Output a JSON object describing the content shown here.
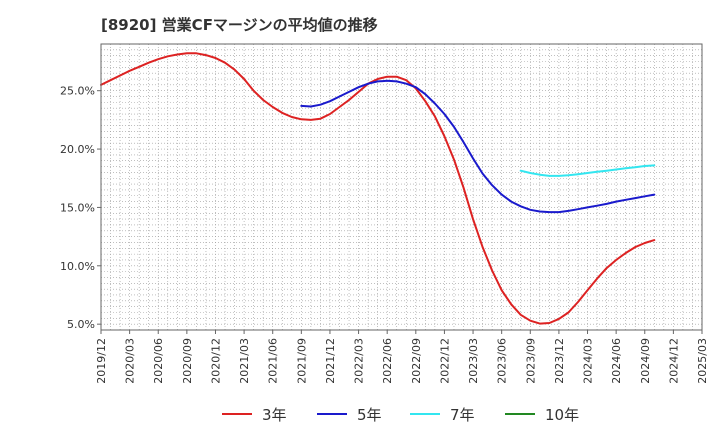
{
  "chart_data": {
    "type": "line",
    "title": "[8920]  営業CFマージンの平均値の推移",
    "x": [
      "2019/12",
      "2020/03",
      "2020/06",
      "2020/09",
      "2020/12",
      "2021/03",
      "2021/06",
      "2021/09",
      "2021/12",
      "2022/03",
      "2022/06",
      "2022/09",
      "2022/12",
      "2023/03",
      "2023/06",
      "2023/09",
      "2023/12",
      "2024/03",
      "2024/06",
      "2024/09",
      "2024/12",
      "2025/03"
    ],
    "xlabel": "",
    "ylabel": "",
    "yticks": [
      5.0,
      10.0,
      15.0,
      20.0,
      25.0
    ],
    "ytick_labels": [
      "5.0%",
      "10.0%",
      "15.0%",
      "20.0%",
      "25.0%"
    ],
    "ylim": [
      4.5,
      29.0
    ],
    "grid": true,
    "legend_position": "bottom",
    "series": [
      {
        "name": "3年",
        "color": "#dd2222",
        "points": [
          [
            "2019/12",
            25.5
          ],
          [
            "2020/01",
            25.9
          ],
          [
            "2020/02",
            26.3
          ],
          [
            "2020/03",
            26.7
          ],
          [
            "2020/04",
            27.05
          ],
          [
            "2020/05",
            27.4
          ],
          [
            "2020/06",
            27.7
          ],
          [
            "2020/07",
            27.95
          ],
          [
            "2020/08",
            28.1
          ],
          [
            "2020/09",
            28.2
          ],
          [
            "2020/10",
            28.2
          ],
          [
            "2020/11",
            28.05
          ],
          [
            "2020/12",
            27.8
          ],
          [
            "2021/01",
            27.4
          ],
          [
            "2021/02",
            26.8
          ],
          [
            "2021/03",
            26.0
          ],
          [
            "2021/04",
            25.0
          ],
          [
            "2021/05",
            24.2
          ],
          [
            "2021/06",
            23.6
          ],
          [
            "2021/07",
            23.1
          ],
          [
            "2021/08",
            22.75
          ],
          [
            "2021/09",
            22.55
          ],
          [
            "2021/10",
            22.5
          ],
          [
            "2021/11",
            22.6
          ],
          [
            "2021/12",
            23.0
          ],
          [
            "2022/01",
            23.6
          ],
          [
            "2022/02",
            24.2
          ],
          [
            "2022/03",
            24.9
          ],
          [
            "2022/04",
            25.6
          ],
          [
            "2022/05",
            26.0
          ],
          [
            "2022/06",
            26.2
          ],
          [
            "2022/07",
            26.2
          ],
          [
            "2022/08",
            25.9
          ],
          [
            "2022/09",
            25.2
          ],
          [
            "2022/10",
            24.1
          ],
          [
            "2022/11",
            22.8
          ],
          [
            "2022/12",
            21.1
          ],
          [
            "2023/01",
            19.1
          ],
          [
            "2023/02",
            16.7
          ],
          [
            "2023/03",
            14.0
          ],
          [
            "2023/04",
            11.6
          ],
          [
            "2023/05",
            9.6
          ],
          [
            "2023/06",
            7.9
          ],
          [
            "2023/07",
            6.7
          ],
          [
            "2023/08",
            5.8
          ],
          [
            "2023/09",
            5.3
          ],
          [
            "2023/10",
            5.05
          ],
          [
            "2023/11",
            5.1
          ],
          [
            "2023/12",
            5.45
          ],
          [
            "2024/01",
            6.0
          ],
          [
            "2024/02",
            6.9
          ],
          [
            "2024/03",
            7.9
          ],
          [
            "2024/04",
            8.9
          ],
          [
            "2024/05",
            9.8
          ],
          [
            "2024/06",
            10.5
          ],
          [
            "2024/07",
            11.1
          ],
          [
            "2024/08",
            11.6
          ],
          [
            "2024/09",
            11.95
          ],
          [
            "2024/10",
            12.2
          ]
        ]
      },
      {
        "name": "5年",
        "color": "#1a1acc",
        "points": [
          [
            "2021/09",
            23.7
          ],
          [
            "2021/10",
            23.65
          ],
          [
            "2021/11",
            23.8
          ],
          [
            "2021/12",
            24.1
          ],
          [
            "2022/01",
            24.5
          ],
          [
            "2022/02",
            24.9
          ],
          [
            "2022/03",
            25.3
          ],
          [
            "2022/04",
            25.6
          ],
          [
            "2022/05",
            25.8
          ],
          [
            "2022/06",
            25.85
          ],
          [
            "2022/07",
            25.8
          ],
          [
            "2022/08",
            25.6
          ],
          [
            "2022/09",
            25.3
          ],
          [
            "2022/10",
            24.7
          ],
          [
            "2022/11",
            23.9
          ],
          [
            "2022/12",
            23.0
          ],
          [
            "2023/01",
            21.9
          ],
          [
            "2023/02",
            20.6
          ],
          [
            "2023/03",
            19.2
          ],
          [
            "2023/04",
            17.9
          ],
          [
            "2023/05",
            16.9
          ],
          [
            "2023/06",
            16.1
          ],
          [
            "2023/07",
            15.5
          ],
          [
            "2023/08",
            15.1
          ],
          [
            "2023/09",
            14.8
          ],
          [
            "2023/10",
            14.65
          ],
          [
            "2023/11",
            14.6
          ],
          [
            "2023/12",
            14.6
          ],
          [
            "2024/01",
            14.7
          ],
          [
            "2024/02",
            14.85
          ],
          [
            "2024/03",
            15.0
          ],
          [
            "2024/04",
            15.15
          ],
          [
            "2024/05",
            15.3
          ],
          [
            "2024/06",
            15.5
          ],
          [
            "2024/07",
            15.65
          ],
          [
            "2024/08",
            15.8
          ],
          [
            "2024/09",
            15.95
          ],
          [
            "2024/10",
            16.1
          ]
        ]
      },
      {
        "name": "7年",
        "color": "#33e6f0",
        "points": [
          [
            "2023/08",
            18.15
          ],
          [
            "2023/09",
            17.95
          ],
          [
            "2023/10",
            17.8
          ],
          [
            "2023/11",
            17.7
          ],
          [
            "2023/12",
            17.7
          ],
          [
            "2024/01",
            17.75
          ],
          [
            "2024/02",
            17.85
          ],
          [
            "2024/03",
            17.95
          ],
          [
            "2024/04",
            18.05
          ],
          [
            "2024/05",
            18.15
          ],
          [
            "2024/06",
            18.25
          ],
          [
            "2024/07",
            18.35
          ],
          [
            "2024/08",
            18.45
          ],
          [
            "2024/09",
            18.55
          ],
          [
            "2024/10",
            18.6
          ]
        ]
      },
      {
        "name": "10年",
        "color": "#228822",
        "points": []
      }
    ]
  }
}
